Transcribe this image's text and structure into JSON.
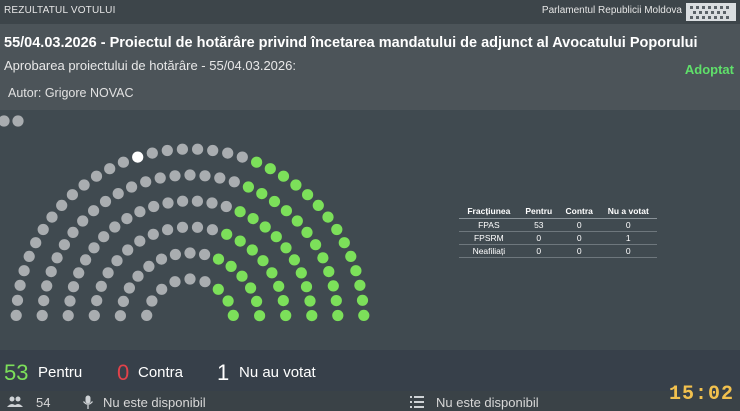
{
  "topbar": {
    "left_label": "REZULTATUL VOTULUI",
    "right_label": "Parlamentul Republicii Moldova"
  },
  "vote": {
    "title": "55/04.03.2026 - Proiectul de hotărâre privind încetarea mandatului de adjunct al Avocatului Poporului",
    "subtitle": "Aprobarea proiectului de hotărâre - 55/04.03.2026:",
    "status": "Adoptat",
    "author": "Autor: Grigore NOVAC"
  },
  "colors": {
    "for": "#7ce05a",
    "against": "#e2424a",
    "abstain": "#ffffff",
    "empty_seat": "#a9adb0",
    "status": "#5fe06a"
  },
  "table": {
    "headers": [
      "Fracțiunea",
      "Pentru",
      "Contra",
      "Nu a votat"
    ],
    "rows": [
      {
        "faction": "FPAS",
        "for": "53",
        "against": "0",
        "not_voted": "0"
      },
      {
        "faction": "FPSRM",
        "for": "0",
        "against": "0",
        "not_voted": "1"
      },
      {
        "faction": "Neafiliați",
        "for": "0",
        "against": "0",
        "not_voted": "0"
      }
    ]
  },
  "totals": {
    "for_count": "53",
    "for_label": "Pentru",
    "against_count": "0",
    "against_label": "Contra",
    "not_voted_count": "1",
    "not_voted_label": "Nu au votat"
  },
  "footer": {
    "present_count": "54",
    "present_icon": "people-icon",
    "mic_icon": "microphone-icon",
    "mic_text": "Nu este disponibil",
    "list_icon": "list-icon",
    "list_text": "Nu este disponibil",
    "clock": "15:02"
  }
}
